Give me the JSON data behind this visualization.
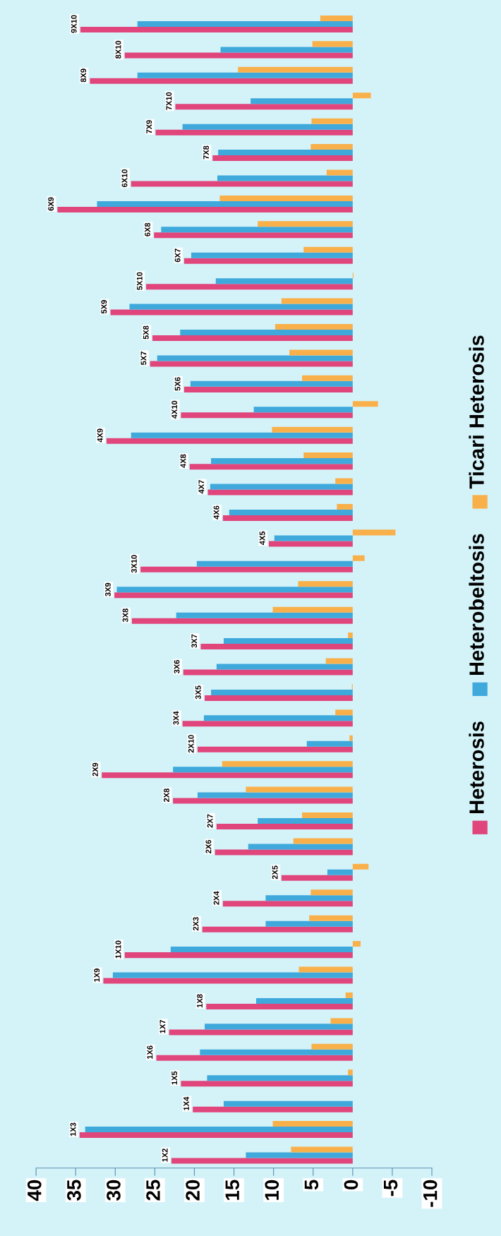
{
  "chart_data": {
    "type": "bar",
    "orientation": "horizontal",
    "categories": [
      "9X10",
      "8X10",
      "8X9",
      "7X10",
      "7X9",
      "7X8",
      "6X10",
      "6X9",
      "6X8",
      "6X7",
      "5X10",
      "5X9",
      "5X8",
      "5X7",
      "5X6",
      "4X10",
      "4X9",
      "4X8",
      "4X7",
      "4X6",
      "4X5",
      "3X10",
      "3X9",
      "3X8",
      "3X7",
      "3X6",
      "3X5",
      "3X4",
      "2X10",
      "2X9",
      "2X8",
      "2X7",
      "2X6",
      "2X5",
      "2X4",
      "2X3",
      "1X10",
      "1X9",
      "1X8",
      "1X7",
      "1X6",
      "1X5",
      "1X4",
      "1X3",
      "1X2"
    ],
    "series": [
      {
        "name": "Heterosis",
        "color": "#e0457b",
        "values": [
          34.4,
          28.8,
          33.2,
          22.4,
          24.9,
          17.7,
          28.0,
          37.3,
          25.1,
          21.3,
          26.1,
          30.6,
          25.3,
          25.6,
          21.3,
          21.7,
          31.1,
          20.6,
          18.3,
          16.4,
          10.6,
          26.8,
          30.1,
          27.9,
          19.2,
          21.4,
          18.7,
          21.5,
          19.6,
          31.7,
          22.7,
          17.2,
          17.4,
          9.0,
          16.4,
          19.0,
          28.8,
          31.5,
          18.5,
          23.2,
          24.8,
          21.7,
          20.2,
          34.5,
          22.9
        ]
      },
      {
        "name": "Heterobeltosis",
        "color": "#3fa9dc",
        "values": [
          27.2,
          16.7,
          27.2,
          12.9,
          21.5,
          17.0,
          17.1,
          32.3,
          24.2,
          20.4,
          17.3,
          28.2,
          21.8,
          24.7,
          20.5,
          12.5,
          28.0,
          17.9,
          18.0,
          15.6,
          9.9,
          19.7,
          29.8,
          22.3,
          16.3,
          17.2,
          17.9,
          18.8,
          5.8,
          22.7,
          19.6,
          12.0,
          13.2,
          3.2,
          11.0,
          11.0,
          23.0,
          30.3,
          12.2,
          18.7,
          19.3,
          18.4,
          16.3,
          33.8,
          13.5
        ]
      },
      {
        "name": "Ticari Heterosis",
        "color": "#f9b04a",
        "values": [
          4.1,
          5.1,
          14.5,
          -2.3,
          5.2,
          5.3,
          3.3,
          16.8,
          12.0,
          6.2,
          -0.1,
          9.0,
          9.8,
          8.0,
          6.4,
          -3.2,
          10.2,
          6.2,
          2.2,
          2.0,
          -5.4,
          -1.5,
          6.9,
          10.1,
          0.6,
          3.4,
          0.1,
          2.2,
          0.4,
          16.5,
          13.5,
          6.4,
          7.5,
          -2.0,
          5.3,
          5.5,
          -1.0,
          6.8,
          0.9,
          2.8,
          5.2,
          0.6,
          0.0,
          10.1,
          7.8
        ]
      }
    ],
    "xlim": [
      40,
      -10
    ],
    "xticks": [
      40,
      35,
      30,
      25,
      20,
      15,
      10,
      5,
      0,
      -5,
      -10
    ],
    "legend": "right",
    "grid": false
  }
}
